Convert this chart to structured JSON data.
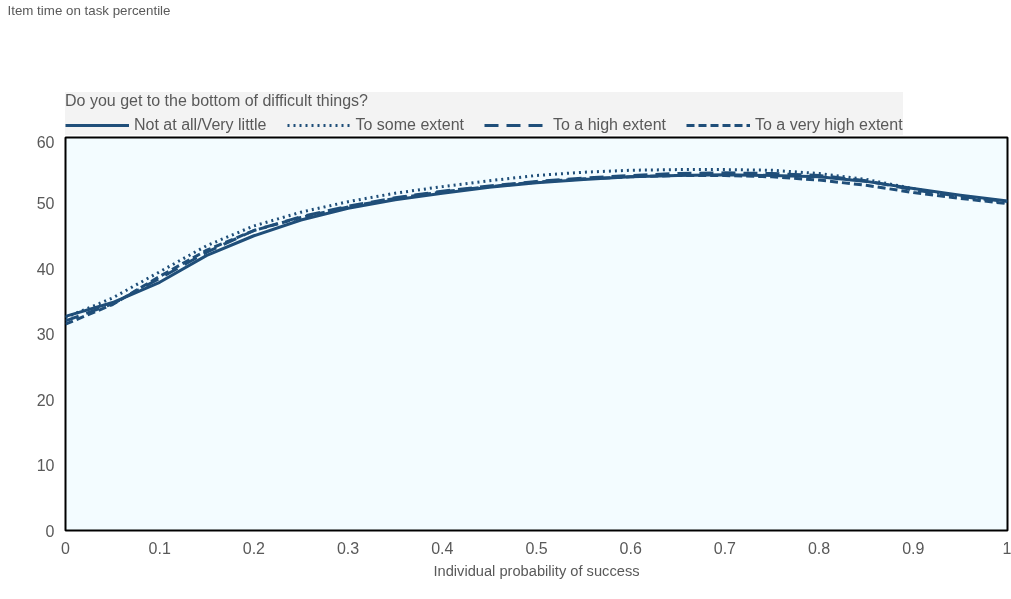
{
  "chart_data": {
    "type": "line",
    "annotations": [
      "Item time on task percentile"
    ],
    "xlabel": "Individual probability of success",
    "legend_title": "Do you get to the bottom of difficult things?",
    "legend": "top",
    "grid": false,
    "x": [
      0,
      0.05,
      0.1,
      0.15,
      0.2,
      0.25,
      0.3,
      0.35,
      0.4,
      0.45,
      0.5,
      0.55,
      0.6,
      0.65,
      0.7,
      0.75,
      0.8,
      0.85,
      0.9,
      0.95,
      1
    ],
    "xlim": [
      0,
      1
    ],
    "xticks": [
      0,
      0.1,
      0.2,
      0.3,
      0.4,
      0.5,
      0.6,
      0.7,
      0.8,
      0.9,
      1
    ],
    "ylim": [
      0,
      60
    ],
    "yticks": [
      0,
      10,
      20,
      30,
      40,
      50,
      60
    ],
    "series": [
      {
        "name": "Not at all/Very little",
        "color": "#1f4e79",
        "line_style": "solid",
        "values": [
          32.7,
          34.8,
          37.9,
          42,
          45,
          47.4,
          49.2,
          50.5,
          51.5,
          52.4,
          53.1,
          53.6,
          54,
          54.2,
          54.3,
          54.2,
          54,
          53.3,
          52.2,
          51.2,
          50.3
        ]
      },
      {
        "name": "To some extent",
        "color": "#1f4e79",
        "line_style": "dotted",
        "values": [
          32.5,
          35.5,
          39.5,
          43.5,
          46.5,
          48.6,
          50.2,
          51.5,
          52.5,
          53.4,
          54.2,
          54.7,
          55,
          55.1,
          55.1,
          55,
          54.5,
          53.6,
          52.2,
          51,
          50
        ]
      },
      {
        "name": "To a high extent",
        "color": "#1f4e79",
        "line_style": "dashed",
        "values": [
          32,
          34.6,
          38.5,
          42.5,
          45.8,
          47.9,
          49.5,
          50.8,
          51.8,
          52.6,
          53.3,
          53.8,
          54.2,
          54.5,
          54.6,
          54.5,
          54.2,
          53.4,
          52,
          51,
          50.2
        ]
      },
      {
        "name": "To a very high extent",
        "color": "#1f4e79",
        "line_style": "dashed",
        "values": [
          31.5,
          34.5,
          38.8,
          42.8,
          45.8,
          47.8,
          49.4,
          50.7,
          51.7,
          52.5,
          53.2,
          53.7,
          54,
          54.2,
          54.2,
          54,
          53.5,
          52.7,
          51.6,
          50.7,
          49.9
        ]
      }
    ]
  }
}
